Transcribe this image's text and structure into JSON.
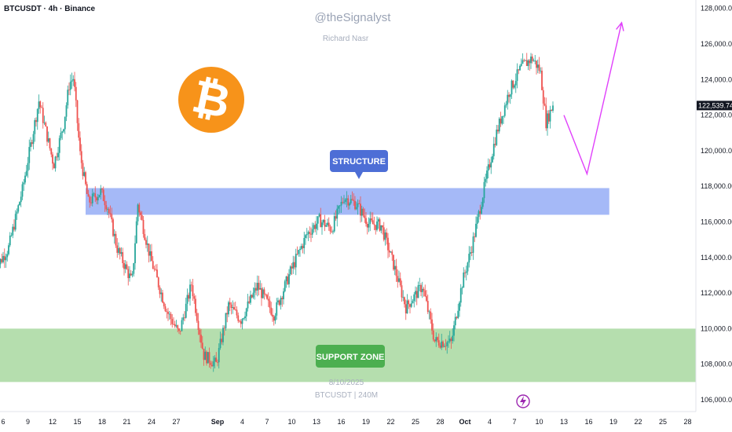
{
  "symbol_header": "BTCUSDT · 4h · Binance",
  "watermark": {
    "handle": "@theSignalyst",
    "author": "Richard Nasr",
    "date": "8/10/2025",
    "footer": "BTCUSDT | 240M"
  },
  "annotations": {
    "structure_label": "STRUCTURE",
    "support_label": "SUPPORT ZONE"
  },
  "last_price": "122,539.74",
  "colors": {
    "up": "#26a69a",
    "down": "#ef5350",
    "structure_zone": "#8fa8f5",
    "structure_label_bg": "#4d6ed6",
    "support_zone": "#a8d8a0",
    "support_label_bg": "#4caf50",
    "projection": "#e040fb",
    "bitcoin_orange": "#f7931a"
  },
  "chart_data": {
    "type": "candlestick",
    "ylim": [
      105500,
      129000
    ],
    "y_ticks": [
      106000,
      108000,
      110000,
      112000,
      114000,
      116000,
      118000,
      120000,
      122000,
      124000,
      126000,
      128000
    ],
    "y_tick_labels": [
      "106,000.00",
      "108,000.00",
      "110,000.00",
      "112,000.00",
      "114,000.00",
      "116,000.00",
      "118,000.00",
      "120,000.00",
      "122,000.00",
      "124,000.00",
      "126,000.00",
      "128,000.00"
    ],
    "x_tick_labels": [
      "6",
      "9",
      "12",
      "15",
      "18",
      "21",
      "24",
      "27",
      "Sep",
      "4",
      "7",
      "10",
      "13",
      "16",
      "19",
      "22",
      "25",
      "28",
      "Oct",
      "4",
      "7",
      "10",
      "13",
      "16",
      "19",
      "22",
      "25",
      "28"
    ],
    "x_tick_days": [
      0,
      3,
      6,
      9,
      12,
      15,
      18,
      21,
      26,
      29,
      32,
      35,
      38,
      41,
      44,
      47,
      50,
      53,
      56,
      59,
      62,
      65,
      68,
      71,
      74,
      77,
      80,
      83
    ],
    "x_range_days": [
      0,
      83
    ],
    "key_points": [
      {
        "day": -1,
        "price": 113200
      },
      {
        "day": 0.8,
        "price": 114500
      },
      {
        "day": 2.5,
        "price": 117800
      },
      {
        "day": 4.5,
        "price": 122800
      },
      {
        "day": 6.3,
        "price": 119200
      },
      {
        "day": 7.5,
        "price": 121500
      },
      {
        "day": 8.2,
        "price": 123800
      },
      {
        "day": 8.7,
        "price": 124100
      },
      {
        "day": 9.5,
        "price": 119800
      },
      {
        "day": 10.5,
        "price": 117100
      },
      {
        "day": 12.0,
        "price": 117700
      },
      {
        "day": 12.8,
        "price": 116900
      },
      {
        "day": 14.0,
        "price": 114500
      },
      {
        "day": 15.8,
        "price": 112600
      },
      {
        "day": 16.5,
        "price": 117000
      },
      {
        "day": 18.0,
        "price": 114000
      },
      {
        "day": 20.0,
        "price": 111000
      },
      {
        "day": 21.5,
        "price": 109700
      },
      {
        "day": 23.0,
        "price": 112500
      },
      {
        "day": 24.5,
        "price": 108500
      },
      {
        "day": 26.0,
        "price": 108000
      },
      {
        "day": 27.5,
        "price": 111300
      },
      {
        "day": 29.0,
        "price": 110500
      },
      {
        "day": 31.0,
        "price": 112400
      },
      {
        "day": 33.0,
        "price": 110800
      },
      {
        "day": 35.0,
        "price": 113200
      },
      {
        "day": 37.0,
        "price": 115300
      },
      {
        "day": 38.5,
        "price": 116100
      },
      {
        "day": 40.0,
        "price": 115600
      },
      {
        "day": 41.5,
        "price": 117400
      },
      {
        "day": 43.0,
        "price": 117000
      },
      {
        "day": 44.5,
        "price": 115900
      },
      {
        "day": 46.0,
        "price": 115800
      },
      {
        "day": 47.5,
        "price": 113600
      },
      {
        "day": 49.0,
        "price": 111200
      },
      {
        "day": 51.0,
        "price": 112400
      },
      {
        "day": 52.5,
        "price": 109300
      },
      {
        "day": 54.5,
        "price": 109200
      },
      {
        "day": 55.8,
        "price": 112500
      },
      {
        "day": 57.0,
        "price": 114600
      },
      {
        "day": 58.5,
        "price": 117900
      },
      {
        "day": 60.0,
        "price": 121000
      },
      {
        "day": 61.5,
        "price": 123300
      },
      {
        "day": 63.0,
        "price": 124700
      },
      {
        "day": 64.3,
        "price": 125200
      },
      {
        "day": 65.3,
        "price": 124500
      },
      {
        "day": 66.0,
        "price": 121600
      },
      {
        "day": 66.8,
        "price": 122540
      }
    ],
    "zones": [
      {
        "name": "structure",
        "from_day": 10,
        "to_day": 73.5,
        "low": 116400,
        "high": 117900
      },
      {
        "name": "support",
        "from_day": -2,
        "to_day": 85,
        "low": 107000,
        "high": 110000
      }
    ],
    "projection": [
      {
        "day": 68,
        "price": 122000
      },
      {
        "day": 70.8,
        "price": 118700
      },
      {
        "day": 75,
        "price": 127200
      }
    ],
    "structure_marker": {
      "day": 46.3,
      "price": 118100
    }
  }
}
